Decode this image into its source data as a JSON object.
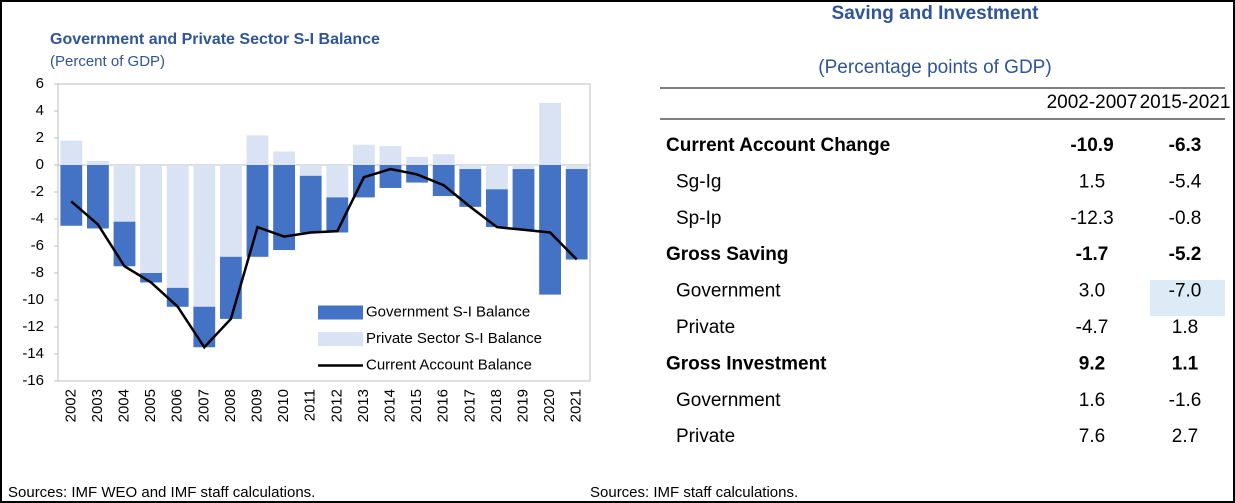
{
  "chart_data": {
    "type": "bar",
    "stacked": true,
    "title": "Government and Private Sector S-I Balance",
    "subtitle": "(Percent of GDP)",
    "categories": [
      "2002",
      "2003",
      "2004",
      "2005",
      "2006",
      "2007",
      "2008",
      "2009",
      "2010",
      "2011",
      "2012",
      "2013",
      "2014",
      "2015",
      "2016",
      "2017",
      "2018",
      "2019",
      "2020",
      "2021"
    ],
    "series": [
      {
        "name": "Government S-I Balance",
        "color": "#4472c4",
        "values": [
          -4.5,
          -4.7,
          -3.3,
          -0.7,
          -1.4,
          -3.0,
          -4.6,
          -6.8,
          -6.3,
          -4.2,
          -2.6,
          -2.4,
          -1.7,
          -1.3,
          -2.3,
          -2.8,
          -2.8,
          -4.5,
          -9.6,
          -6.7
        ]
      },
      {
        "name": "Private Sector S-I Balance",
        "color": "#dae3f3",
        "values": [
          1.8,
          0.3,
          -4.2,
          -8.0,
          -9.1,
          -10.5,
          -6.8,
          2.2,
          1.0,
          -0.8,
          -2.4,
          1.5,
          1.4,
          0.6,
          0.8,
          -0.3,
          -1.8,
          -0.3,
          4.6,
          -0.3
        ]
      },
      {
        "name": "Current Account Balance",
        "type": "line",
        "color": "#000000",
        "values": [
          -2.7,
          -4.4,
          -7.5,
          -8.7,
          -10.5,
          -13.5,
          -11.4,
          -4.6,
          -5.3,
          -5.0,
          -4.9,
          -0.9,
          -0.3,
          -0.7,
          -1.5,
          -3.1,
          -4.6,
          -4.8,
          -5.0,
          -7.0
        ]
      }
    ],
    "ylim": [
      -16,
      6
    ],
    "yticks": [
      -16,
      -14,
      -12,
      -10,
      -8,
      -6,
      -4,
      -2,
      0,
      2,
      4,
      6
    ],
    "legend": "bottom-right",
    "source": "Sources: IMF WEO and IMF staff calculations."
  },
  "table": {
    "title": "Saving and Investment",
    "subtitle": "(Percentage points of GDP)",
    "columns": [
      "2002-2007",
      "2015-2021"
    ],
    "rows": [
      [
        "Current Account Change",
        "-10.9",
        "-6.3"
      ],
      [
        "Sg-Ig",
        "1.5",
        "-5.4"
      ],
      [
        "Sp-Ip",
        "-12.3",
        "-0.8"
      ],
      [
        "Gross Saving",
        "-1.7",
        "-5.2"
      ],
      [
        "Government",
        "3.0",
        "-7.0"
      ],
      [
        "Private",
        "-4.7",
        "1.8"
      ],
      [
        "Gross Investment",
        "9.2",
        "1.1"
      ],
      [
        "Government",
        "1.6",
        "-1.6"
      ],
      [
        "Private",
        "7.6",
        "2.7"
      ]
    ],
    "source": "Sources: IMF staff calculations."
  }
}
